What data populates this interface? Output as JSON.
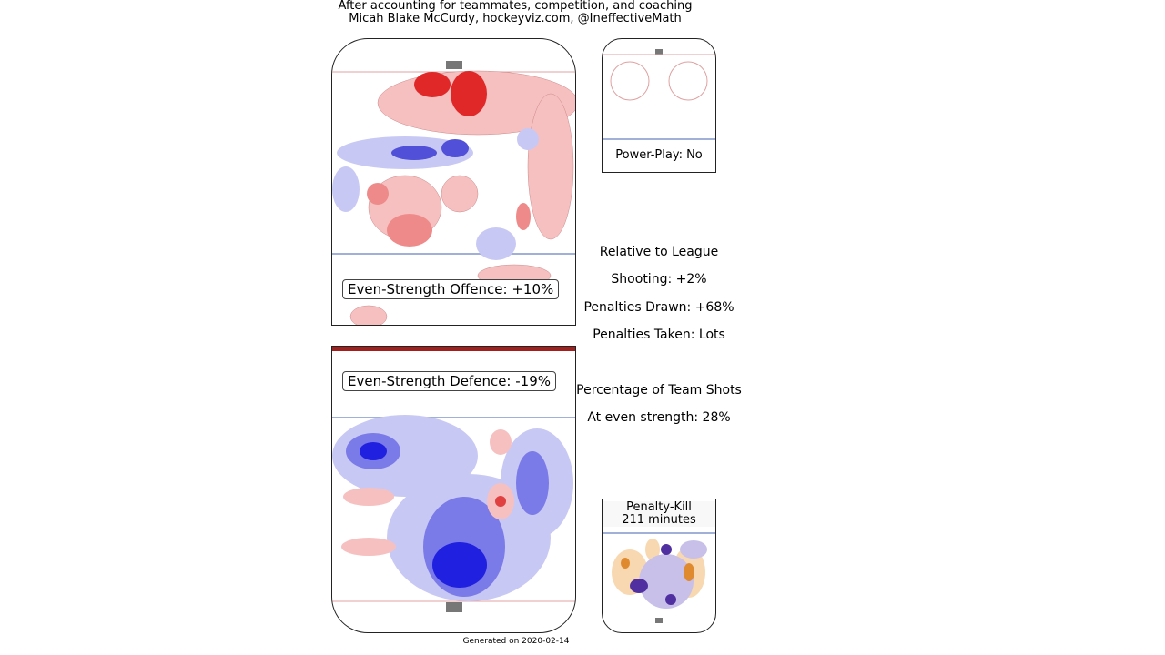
{
  "header": {
    "line1": "After accounting for teammates, competition, and coaching",
    "line2": "Micah Blake McCurdy, hockeyviz.com, @IneffectiveMath"
  },
  "offence": {
    "label": "Even-Strength Offence: +10%"
  },
  "defence": {
    "label": "Even-Strength Defence: -19%"
  },
  "powerplay": {
    "label": "Power-Play: No"
  },
  "penalty_kill": {
    "title": "Penalty-Kill",
    "minutes": "211 minutes"
  },
  "stats": {
    "heading1": "Relative to League",
    "shooting": "Shooting: +2%",
    "drawn": "Penalties Drawn: +68%",
    "taken": "Penalties Taken: Lots",
    "heading2": "Percentage of Team Shots",
    "even": "At even strength: 28%"
  },
  "footer": {
    "generated": "Generated on 2020-02-14"
  },
  "colors": {
    "more": "#e03030",
    "less": "#3030d0",
    "pk_more": "#e08a30",
    "pk_less": "#5030a0"
  },
  "chart_data": {
    "type": "heatmap",
    "title": "",
    "note": "Shot-rate density maps relative to league (red = more, blue = less)"
  }
}
